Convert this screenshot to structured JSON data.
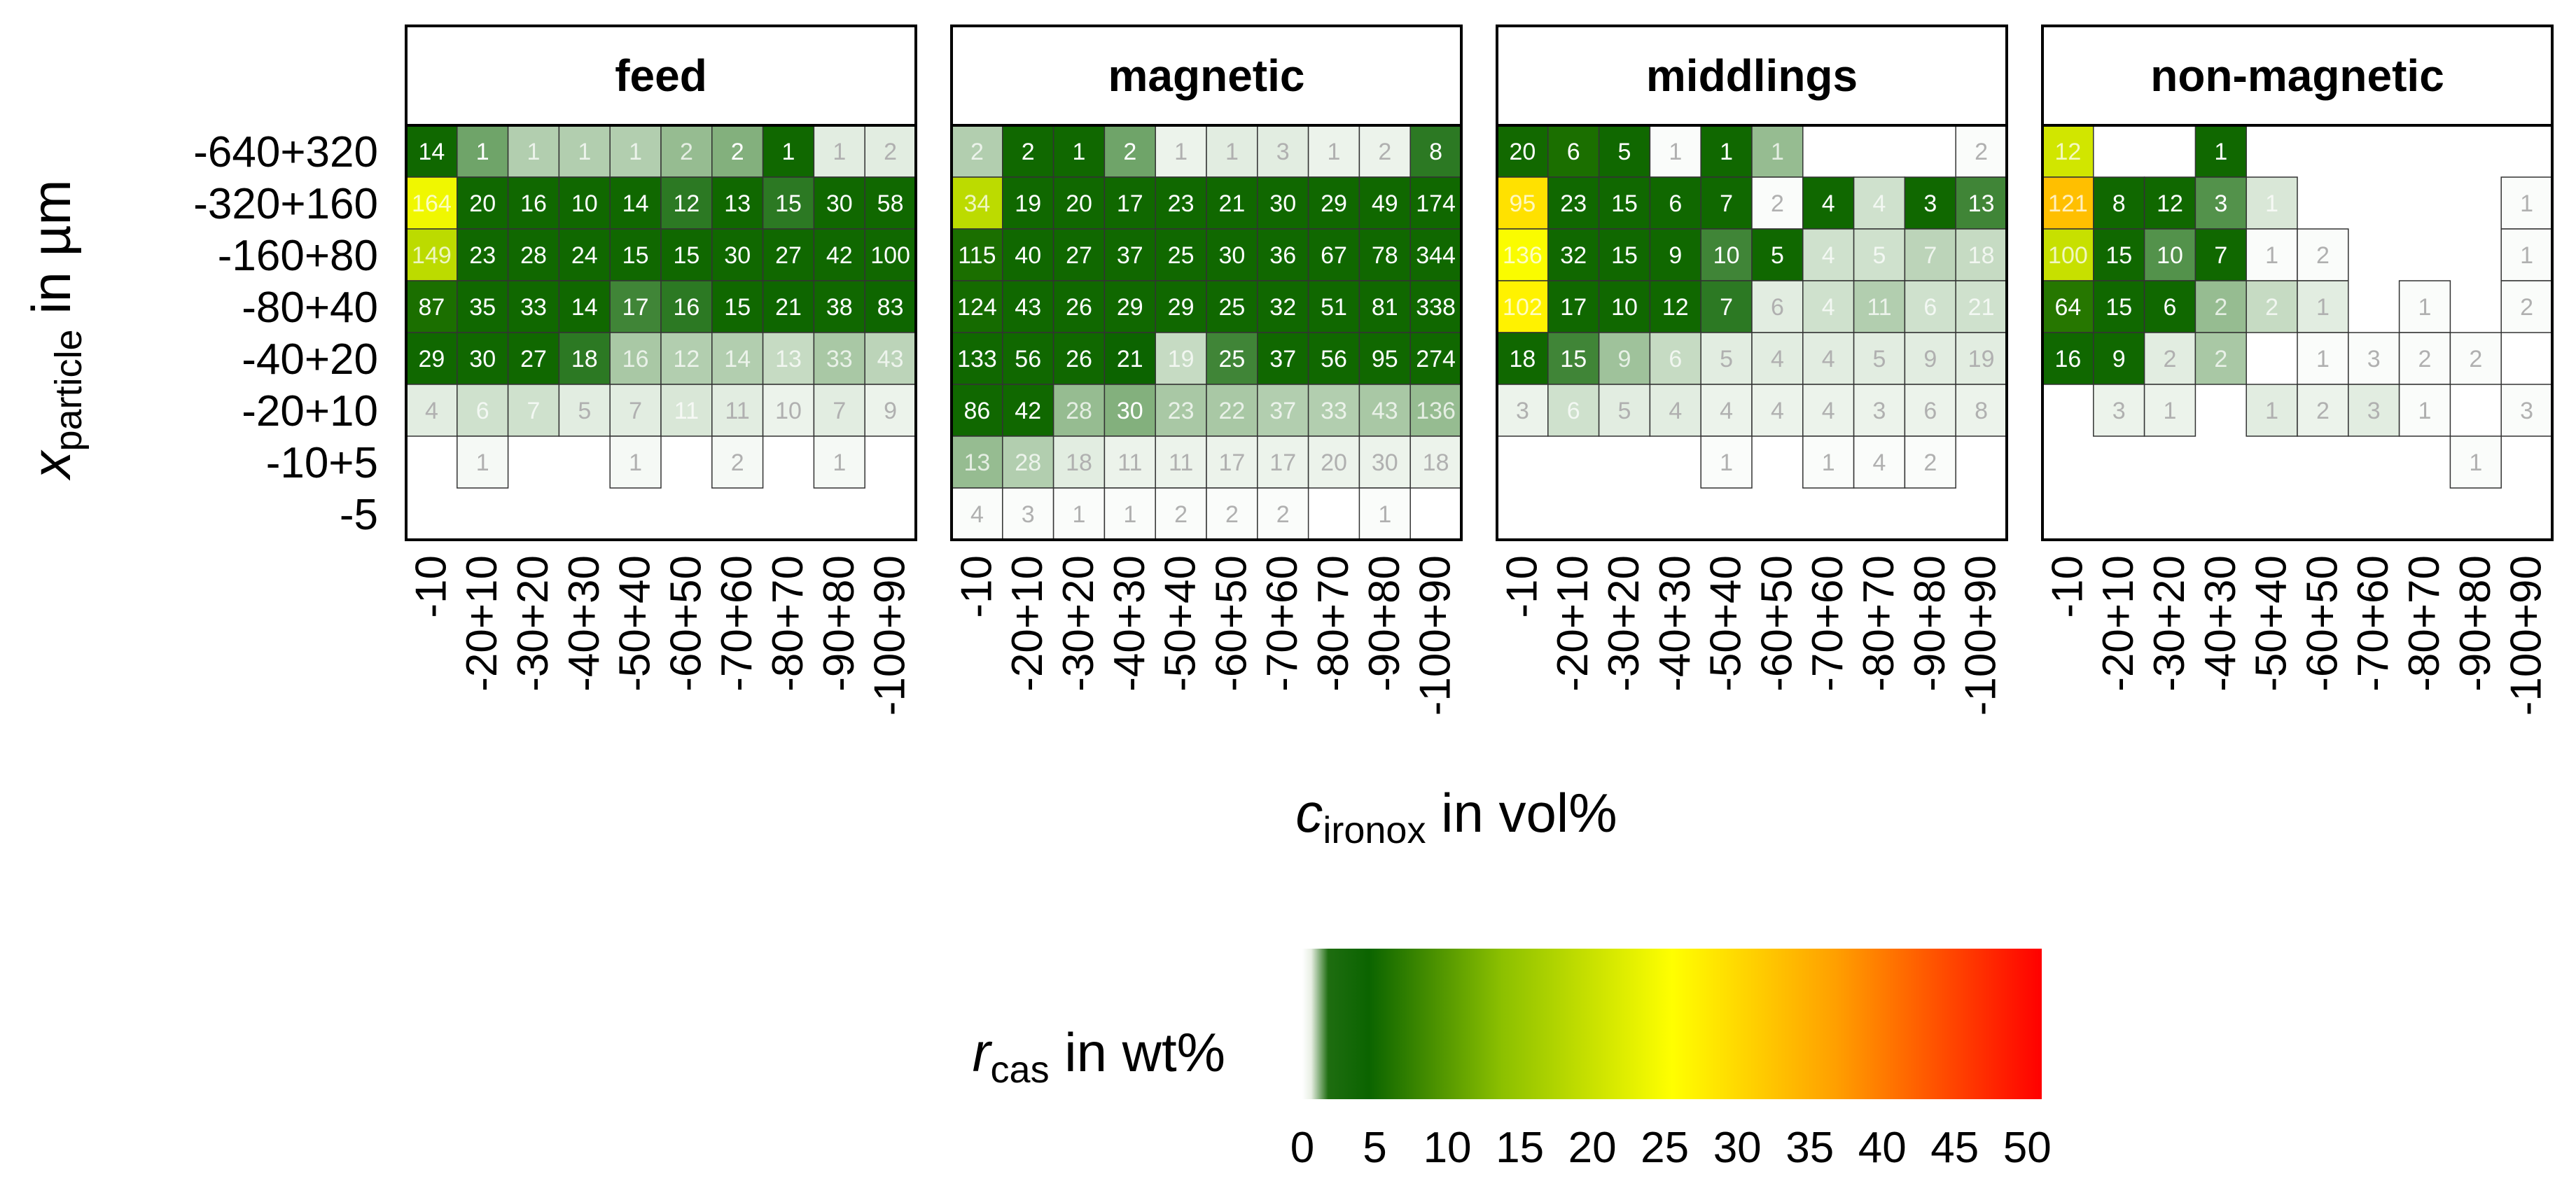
{
  "chart_data": {
    "type": "heatmap",
    "y_axis": {
      "label": "x",
      "label_sub": "particle",
      "label_suffix": " in µm",
      "categories": [
        "-640+320",
        "-320+160",
        "-160+80",
        "-80+40",
        "-40+20",
        "-20+10",
        "-10+5",
        "-5"
      ]
    },
    "x_axis": {
      "label": "c",
      "label_sub": "ironox",
      "label_suffix": " in vol%",
      "categories": [
        "-10",
        "-20+10",
        "-30+20",
        "-40+30",
        "-50+40",
        "-60+50",
        "-70+60",
        "-80+70",
        "-90+80",
        "-100+90"
      ]
    },
    "colorbar": {
      "label": "r",
      "label_sub": "cas",
      "label_suffix": " in wt%",
      "min": 0,
      "max": 51,
      "ticks": [
        0,
        5,
        10,
        15,
        20,
        25,
        30,
        35,
        40,
        45,
        50
      ],
      "colors": [
        "#ffffff",
        "#0b6400",
        "#8cc000",
        "#ffff00",
        "#ffa000",
        "#ff0000"
      ]
    },
    "panels": [
      {
        "title": "feed",
        "counts": [
          [
            14,
            1,
            1,
            1,
            1,
            2,
            2,
            1,
            1,
            2
          ],
          [
            164,
            20,
            16,
            10,
            14,
            12,
            13,
            15,
            30,
            58
          ],
          [
            149,
            23,
            28,
            24,
            15,
            15,
            30,
            27,
            42,
            100
          ],
          [
            87,
            35,
            33,
            14,
            17,
            16,
            15,
            21,
            38,
            83
          ],
          [
            29,
            30,
            27,
            18,
            16,
            12,
            14,
            13,
            33,
            43
          ],
          [
            4,
            6,
            7,
            5,
            7,
            11,
            11,
            10,
            7,
            9
          ],
          [
            null,
            1,
            null,
            null,
            1,
            null,
            2,
            null,
            1,
            null
          ],
          [
            null,
            null,
            null,
            null,
            null,
            null,
            null,
            null,
            null,
            null
          ]
        ],
        "r_cas": [
          [
            3,
            1.5,
            0.8,
            0.8,
            0.8,
            1.1,
            1.3,
            3,
            0.3,
            0.3
          ],
          [
            24,
            3,
            3,
            3,
            3,
            2.2,
            3,
            2.2,
            3,
            3
          ],
          [
            19,
            3,
            3,
            3,
            3,
            3,
            3,
            3,
            3,
            3
          ],
          [
            4,
            3,
            3,
            3,
            2,
            2.2,
            3,
            2.8,
            3,
            2.8
          ],
          [
            3,
            3,
            3,
            2.2,
            0.9,
            0.8,
            0.8,
            0.6,
            0.9,
            0.7
          ],
          [
            0.3,
            0.5,
            0.5,
            0.3,
            0.3,
            0.4,
            0.3,
            0.2,
            0.3,
            0.2
          ],
          [
            null,
            0.1,
            null,
            null,
            0.1,
            null,
            0.1,
            null,
            0.1,
            null
          ],
          [
            null,
            null,
            null,
            null,
            null,
            null,
            null,
            null,
            null,
            null
          ]
        ]
      },
      {
        "title": "magnetic",
        "counts": [
          [
            2,
            2,
            1,
            2,
            1,
            1,
            3,
            1,
            2,
            8
          ],
          [
            34,
            19,
            20,
            17,
            23,
            21,
            30,
            29,
            49,
            174
          ],
          [
            115,
            40,
            27,
            37,
            25,
            30,
            36,
            67,
            78,
            344
          ],
          [
            124,
            43,
            26,
            29,
            29,
            25,
            32,
            51,
            81,
            338
          ],
          [
            133,
            56,
            26,
            21,
            19,
            25,
            37,
            56,
            95,
            274
          ],
          [
            86,
            42,
            28,
            30,
            23,
            22,
            37,
            33,
            43,
            136
          ],
          [
            13,
            28,
            18,
            11,
            11,
            17,
            17,
            20,
            30,
            18
          ],
          [
            4,
            3,
            1,
            1,
            2,
            2,
            2,
            null,
            1,
            null
          ]
        ],
        "r_cas": [
          [
            0.8,
            3,
            3,
            1.5,
            0.2,
            0.3,
            0.3,
            0.2,
            0.2,
            2.2
          ],
          [
            19,
            3,
            3,
            3,
            3,
            3,
            3,
            3,
            3,
            3
          ],
          [
            4,
            3,
            3,
            3,
            3,
            3,
            3,
            3,
            3,
            3
          ],
          [
            3.5,
            3,
            3,
            3,
            3,
            3,
            3,
            3,
            3,
            3
          ],
          [
            3,
            3,
            3,
            2.6,
            0.6,
            2,
            3,
            3,
            3,
            3
          ],
          [
            3,
            3,
            1.1,
            1.3,
            0.9,
            0.9,
            0.8,
            0.8,
            0.9,
            1.1
          ],
          [
            1.1,
            0.8,
            0.3,
            0.2,
            0.2,
            0.2,
            0.2,
            0.2,
            0.2,
            0.2
          ],
          [
            0.05,
            0.05,
            0.05,
            0.05,
            0.05,
            0.05,
            0.05,
            null,
            0.05,
            null
          ]
        ]
      },
      {
        "title": "middlings",
        "counts": [
          [
            20,
            6,
            5,
            1,
            1,
            1,
            null,
            null,
            null,
            2
          ],
          [
            95,
            23,
            15,
            6,
            7,
            2,
            4,
            4,
            3,
            13
          ],
          [
            136,
            32,
            15,
            9,
            10,
            5,
            4,
            5,
            7,
            18
          ],
          [
            102,
            17,
            10,
            12,
            7,
            6,
            4,
            11,
            6,
            21
          ],
          [
            18,
            15,
            9,
            6,
            5,
            4,
            4,
            5,
            9,
            19
          ],
          [
            3,
            6,
            5,
            4,
            4,
            4,
            4,
            3,
            6,
            8
          ],
          [
            null,
            null,
            null,
            null,
            1,
            null,
            1,
            4,
            2,
            null
          ],
          [
            null,
            null,
            null,
            null,
            null,
            null,
            null,
            null,
            null,
            null
          ]
        ],
        "r_cas": [
          [
            3.2,
            4,
            3,
            0.05,
            3,
            1.1,
            null,
            null,
            null,
            0.05
          ],
          [
            29,
            3,
            3,
            3,
            3,
            0.05,
            3,
            0.5,
            3,
            2
          ],
          [
            25,
            3,
            3,
            3,
            2,
            3,
            0.5,
            0.5,
            0.7,
            0.6
          ],
          [
            27,
            3,
            3,
            3,
            2.2,
            0.3,
            0.5,
            0.8,
            0.5,
            0.5
          ],
          [
            3,
            2,
            1,
            0.6,
            0.3,
            0.3,
            0.3,
            0.3,
            0.3,
            0.3
          ],
          [
            0.2,
            0.5,
            0.3,
            0.3,
            0.2,
            0.2,
            0.2,
            0.2,
            0.2,
            0.2
          ],
          [
            null,
            null,
            null,
            null,
            0.05,
            null,
            0.05,
            0.05,
            0.05,
            null
          ],
          [
            null,
            null,
            null,
            null,
            null,
            null,
            null,
            null,
            null,
            null
          ]
        ]
      },
      {
        "title": "non-magnetic",
        "counts": [
          [
            12,
            null,
            null,
            1,
            null,
            null,
            null,
            null,
            null,
            null
          ],
          [
            121,
            8,
            12,
            3,
            1,
            null,
            null,
            null,
            null,
            1
          ],
          [
            100,
            15,
            10,
            7,
            1,
            2,
            null,
            null,
            null,
            1
          ],
          [
            64,
            15,
            6,
            2,
            2,
            1,
            null,
            1,
            null,
            2
          ],
          [
            16,
            9,
            2,
            2,
            null,
            1,
            3,
            2,
            2,
            null
          ],
          [
            null,
            3,
            1,
            null,
            1,
            2,
            3,
            1,
            null,
            3
          ],
          [
            null,
            null,
            null,
            null,
            null,
            null,
            null,
            null,
            1,
            null
          ],
          [
            null,
            null,
            null,
            null,
            null,
            null,
            null,
            null,
            null,
            null
          ]
        ],
        "r_cas": [
          [
            21,
            null,
            null,
            3,
            null,
            null,
            null,
            null,
            null,
            null
          ],
          [
            33,
            3,
            3,
            1.8,
            0.4,
            null,
            null,
            null,
            null,
            0.05
          ],
          [
            20,
            3,
            1.8,
            3,
            0.05,
            0.05,
            null,
            null,
            null,
            0.05
          ],
          [
            5,
            3,
            3,
            1.1,
            0.6,
            0.3,
            null,
            0.05,
            null,
            0.05
          ],
          [
            3,
            3,
            0.3,
            0.9,
            null,
            0.05,
            0.05,
            0.05,
            0.05,
            null
          ],
          [
            null,
            0.2,
            0.2,
            null,
            0.3,
            0.2,
            0.3,
            0.05,
            null,
            0.05
          ],
          [
            null,
            null,
            null,
            null,
            null,
            null,
            null,
            null,
            0.05,
            null
          ],
          [
            null,
            null,
            null,
            null,
            null,
            null,
            null,
            null,
            null,
            null
          ]
        ]
      }
    ]
  }
}
